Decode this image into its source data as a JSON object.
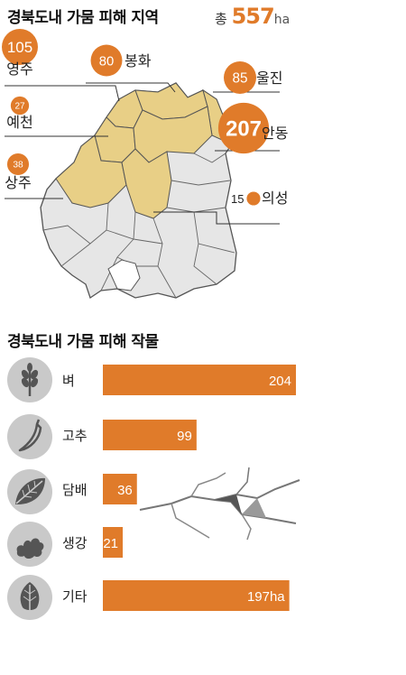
{
  "map": {
    "title": "경북도내 가뭄 피해 지역",
    "total_label": "총",
    "total_value": "557",
    "total_unit": "ha"
  },
  "crops": {
    "title": "경북도내 가뭄 피해 작물"
  },
  "colors": {
    "accent": "#e07b2a",
    "affected_region": "#e8cf86",
    "other_region": "#e6e6e6",
    "icon_bg": "#c9c9c9"
  },
  "chart_data": [
    {
      "type": "bubble-map",
      "title": "경북도내 가뭄 피해 지역",
      "total": 557,
      "unit": "ha",
      "regions": [
        {
          "name": "영주",
          "value": 105
        },
        {
          "name": "봉화",
          "value": 80
        },
        {
          "name": "울진",
          "value": 85
        },
        {
          "name": "예천",
          "value": 27
        },
        {
          "name": "안동",
          "value": 207
        },
        {
          "name": "상주",
          "value": 38
        },
        {
          "name": "의성",
          "value": 15
        }
      ]
    },
    {
      "type": "bar",
      "title": "경북도내 가뭄 피해 작물",
      "orientation": "horizontal",
      "categories": [
        "벼",
        "고추",
        "담배",
        "생강",
        "기타"
      ],
      "values": [
        204,
        99,
        36,
        21,
        197
      ],
      "value_labels": [
        "204",
        "99",
        "36",
        "21",
        "197ha"
      ],
      "icons": [
        "rice-icon",
        "chili-pepper-icon",
        "tobacco-leaf-icon",
        "ginger-icon",
        "leaf-icon"
      ]
    }
  ]
}
